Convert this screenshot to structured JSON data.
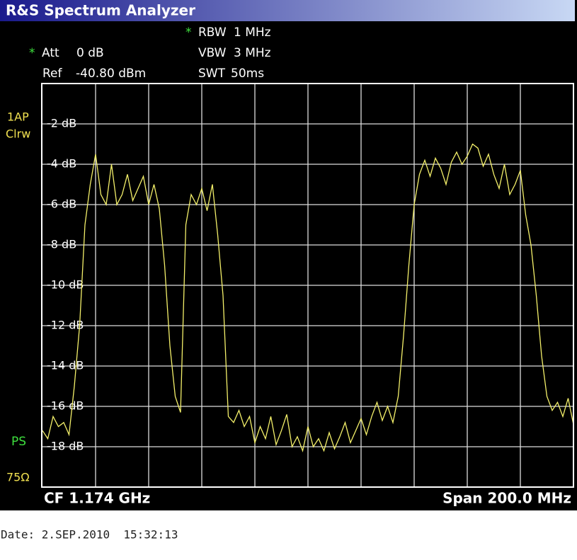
{
  "header": {
    "title": "R&S Spectrum Analyzer"
  },
  "settings": {
    "rbw": {
      "flag": "*",
      "label": "RBW",
      "value": "1 MHz"
    },
    "att": {
      "flag": "*",
      "label": "Att",
      "value": "0 dB"
    },
    "vbw": {
      "label": "VBW",
      "value": "3 MHz"
    },
    "ref": {
      "label": "Ref",
      "value": "-40.80 dBm"
    },
    "swt": {
      "label": "SWT",
      "value": "50ms"
    }
  },
  "side_labels": {
    "trace": "1AP",
    "mode": "Clrw",
    "ps": "PS",
    "impedance": "75Ω"
  },
  "chart_data": {
    "type": "line",
    "x_left_label": "CF 1.174 GHz",
    "x_right_label": "Span 200.0 MHz",
    "color": "#f4f06a",
    "ylim": [
      -20,
      0
    ],
    "yticks": [
      {
        "value": -2,
        "label": "-2 dB"
      },
      {
        "value": -4,
        "label": "-4 dB"
      },
      {
        "value": -6,
        "label": "-6 dB"
      },
      {
        "value": -8,
        "label": "-8 dB"
      },
      {
        "value": -10,
        "label": "-10 dB"
      },
      {
        "value": -12,
        "label": "-12 dB"
      },
      {
        "value": -14,
        "label": "-14 dB"
      },
      {
        "value": -16,
        "label": "-16 dB"
      },
      {
        "value": -18,
        "label": "-18 dB"
      }
    ],
    "grid": true,
    "values": [
      -17.2,
      -17.6,
      -16.5,
      -17.0,
      -16.8,
      -17.4,
      -15.0,
      -12.0,
      -7.0,
      -5.0,
      -3.5,
      -5.5,
      -6.0,
      -4.0,
      -6.0,
      -5.5,
      -4.5,
      -5.8,
      -5.2,
      -4.6,
      -6.0,
      -5.0,
      -6.2,
      -9.0,
      -13.0,
      -15.5,
      -16.3,
      -7.0,
      -5.5,
      -6.0,
      -5.2,
      -6.3,
      -5.0,
      -7.5,
      -10.5,
      -16.5,
      -16.8,
      -16.2,
      -17.0,
      -16.5,
      -17.8,
      -17.0,
      -17.6,
      -16.5,
      -17.9,
      -17.2,
      -16.4,
      -18.0,
      -17.5,
      -18.2,
      -17.0,
      -18.0,
      -17.6,
      -18.2,
      -17.3,
      -18.1,
      -17.5,
      -16.8,
      -17.8,
      -17.2,
      -16.6,
      -17.4,
      -16.5,
      -15.8,
      -16.7,
      -16.0,
      -16.8,
      -15.5,
      -12.5,
      -9.0,
      -6.0,
      -4.5,
      -3.8,
      -4.6,
      -3.7,
      -4.2,
      -5.0,
      -3.9,
      -3.4,
      -4.0,
      -3.6,
      -3.0,
      -3.2,
      -4.1,
      -3.5,
      -4.5,
      -5.2,
      -4.0,
      -5.5,
      -5.0,
      -4.3,
      -6.5,
      -8.0,
      -10.5,
      -13.5,
      -15.5,
      -16.2,
      -15.8,
      -16.5,
      -15.6,
      -16.9
    ]
  },
  "footer": {
    "date": "Date: 2.SEP.2010  15:32:13"
  }
}
